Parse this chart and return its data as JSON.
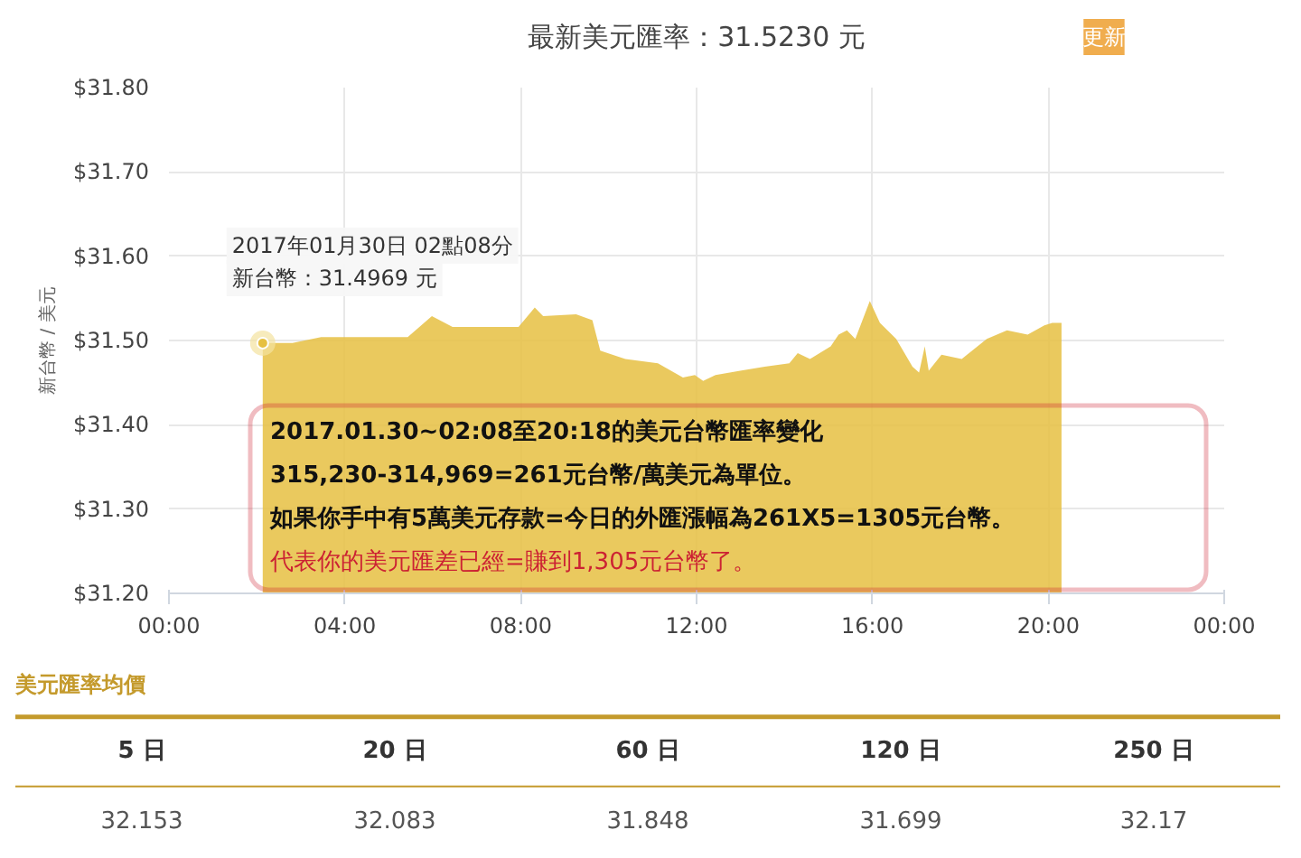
{
  "chart_data": [
    {
      "type": "area",
      "title": "最新美元匯率：31.5230 元",
      "ylabel": "新台幣 / 美元",
      "x": [
        2.133,
        2.81,
        3.46,
        5.43,
        5.98,
        6.45,
        7.95,
        8.32,
        8.51,
        9.26,
        9.63,
        9.81,
        10.38,
        11.12,
        11.69,
        11.96,
        12.15,
        12.43,
        12.99,
        13.55,
        14.11,
        14.3,
        14.58,
        15.05,
        15.23,
        15.42,
        15.61,
        15.94,
        16.17,
        16.54,
        16.91,
        17.06,
        17.19,
        17.28,
        17.57,
        18.03,
        18.6,
        19.06,
        19.53,
        19.91,
        20.09,
        20.3
      ],
      "series": [
        {
          "color": "#e6c042",
          "values": [
            31.497,
            31.497,
            31.504,
            31.504,
            31.529,
            31.516,
            31.516,
            31.539,
            31.529,
            31.531,
            31.524,
            31.488,
            31.478,
            31.473,
            31.456,
            31.459,
            31.452,
            31.459,
            31.464,
            31.469,
            31.473,
            31.485,
            31.478,
            31.493,
            31.507,
            31.512,
            31.502,
            31.547,
            31.521,
            31.502,
            31.469,
            31.462,
            31.493,
            31.464,
            31.483,
            31.478,
            31.502,
            31.512,
            31.507,
            31.518,
            31.521,
            31.521
          ]
        }
      ],
      "xlim": [
        0,
        24
      ],
      "xticks": [
        {
          "value": 0,
          "label": "00:00"
        },
        {
          "value": 4,
          "label": "04:00"
        },
        {
          "value": 8,
          "label": "08:00"
        },
        {
          "value": 12,
          "label": "12:00"
        },
        {
          "value": 16,
          "label": "16:00"
        },
        {
          "value": 20,
          "label": "20:00"
        },
        {
          "value": 24,
          "label": "00:00"
        }
      ],
      "ylim": [
        31.2,
        31.8
      ],
      "yticks": [
        {
          "value": 31.2,
          "label": "$31.20"
        },
        {
          "value": 31.3,
          "label": "$31.30"
        },
        {
          "value": 31.4,
          "label": "$31.40"
        },
        {
          "value": 31.5,
          "label": "$31.50"
        },
        {
          "value": 31.6,
          "label": "$31.60"
        },
        {
          "value": 31.7,
          "label": "$31.70"
        },
        {
          "value": 31.8,
          "label": "$31.80"
        }
      ],
      "grid": true,
      "annotations": [
        "2017年01月30日 02點08分",
        {
          "text": "新台幣：31.4969 元",
          "x": 2.133,
          "y": 31.4969
        },
        "更新",
        "2017.01.30~02:08至20:18的美元台幣匯率變化",
        "315,230-314,969=261元台幣/萬美元為單位。",
        "如果你手中有5萬美元存款=今日的外匯漲幅為261X5=1305元台幣。",
        "代表你的美元匯差已經=賺到1,305元台幣了。"
      ]
    },
    {
      "type": "other",
      "title": "美元匯率均價",
      "categories": [
        "5 日",
        "20 日",
        "60 日",
        "120 日",
        "250 日"
      ],
      "values": [
        32.153,
        32.083,
        31.848,
        31.699,
        32.17
      ],
      "data_labels": true
    }
  ]
}
